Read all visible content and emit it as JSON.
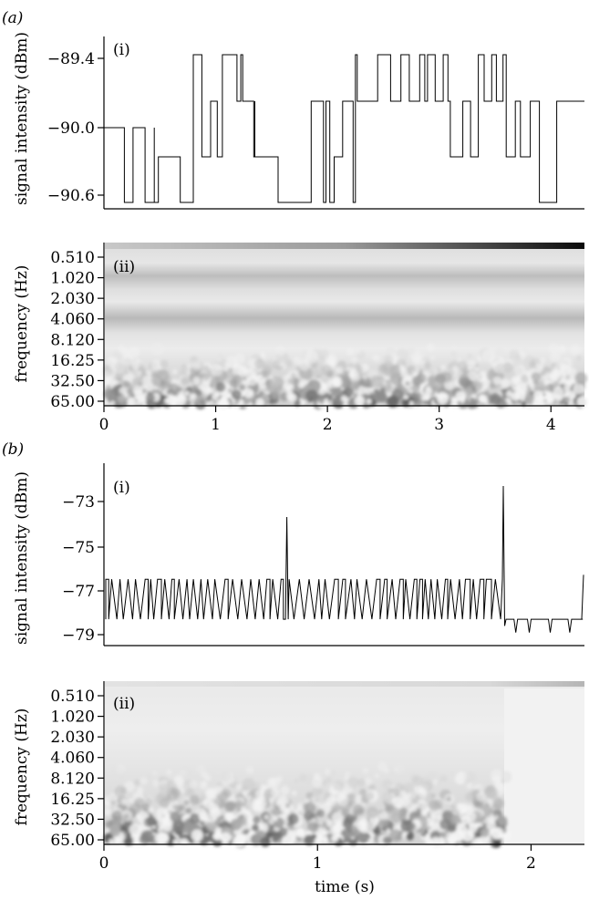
{
  "figure": {
    "panel_a_label": "(a)",
    "panel_b_label": "(b)"
  },
  "chart_data": [
    {
      "id": "a-i",
      "type": "line",
      "panel_label": "(i)",
      "ylabel": "signal intensity (dBm)",
      "xlim": [
        0,
        4.3
      ],
      "ylim": [
        -90.7,
        -89.3
      ],
      "yticks": [
        -89.4,
        -90.0,
        -90.6
      ],
      "ytick_labels": [
        "−89.4",
        "−90.0",
        "−90.6"
      ],
      "levels": [
        -90.6,
        -90.3,
        -90.0,
        -89.6,
        -89.4
      ],
      "regimes": [
        {
          "start": 0.0,
          "end": 0.45,
          "base": -90.0,
          "alt": [
            -90.3,
            -90.6
          ]
        },
        {
          "start": 0.45,
          "end": 0.8,
          "base": -90.6,
          "alt": [
            -90.3
          ]
        },
        {
          "start": 0.8,
          "end": 1.35,
          "base": -89.9,
          "alt": [
            -89.4,
            -90.3
          ]
        },
        {
          "start": 1.35,
          "end": 2.25,
          "base": -89.9,
          "alt": [
            -90.3,
            -90.6
          ]
        },
        {
          "start": 2.25,
          "end": 3.1,
          "base": -89.6,
          "alt": [
            -89.4
          ]
        },
        {
          "start": 3.1,
          "end": 3.35,
          "base": -89.9,
          "alt": [
            -90.3
          ]
        },
        {
          "start": 3.35,
          "end": 3.6,
          "base": -89.6,
          "alt": [
            -89.4
          ]
        },
        {
          "start": 3.6,
          "end": 4.3,
          "base": -89.9,
          "alt": [
            -90.3,
            -90.6
          ]
        }
      ],
      "xtick_labels_shown": false
    },
    {
      "id": "a-ii",
      "type": "heatmap",
      "panel_label": "(ii)",
      "ylabel": "frequency (Hz)",
      "xlim": [
        0,
        4.3
      ],
      "ytick_labels": [
        "0.510",
        "1.020",
        "2.030",
        "4.060",
        "8.120",
        "16.25",
        "32.50",
        "65.00"
      ],
      "xticks": [
        0,
        1,
        2,
        3,
        4
      ],
      "xtick_labels": [
        "0",
        "1",
        "2",
        "3",
        "4"
      ],
      "xlabel": "",
      "colormap": "grayscale"
    },
    {
      "id": "b-i",
      "type": "line",
      "panel_label": "(i)",
      "ylabel": "signal intensity (dBm)",
      "xlim": [
        0,
        2.25
      ],
      "ylim": [
        -79.3,
        -72.0
      ],
      "yticks": [
        -73,
        -75,
        -77,
        -79
      ],
      "ytick_labels": [
        "−73",
        "−75",
        "−77",
        "−79"
      ],
      "spikes": [
        {
          "x": 0.85,
          "y": -73.7
        },
        {
          "x": 1.87,
          "y": -72.3
        }
      ],
      "segment_1": {
        "start": 0.0,
        "end": 1.87,
        "high": -76.5,
        "low": -78.3
      },
      "segment_2": {
        "start": 1.87,
        "end": 2.25,
        "high": -78.3,
        "low": -78.9,
        "final": -76.3
      },
      "xtick_labels_shown": false
    },
    {
      "id": "b-ii",
      "type": "heatmap",
      "panel_label": "(ii)",
      "ylabel": "frequency (Hz)",
      "xlim": [
        0,
        2.25
      ],
      "ytick_labels": [
        "0.510",
        "1.020",
        "2.030",
        "4.060",
        "8.120",
        "16.25",
        "32.50",
        "65.00"
      ],
      "xticks": [
        0,
        1,
        2
      ],
      "xtick_labels": [
        "0",
        "1",
        "2"
      ],
      "xlabel": "time (s)",
      "colormap": "grayscale"
    }
  ]
}
